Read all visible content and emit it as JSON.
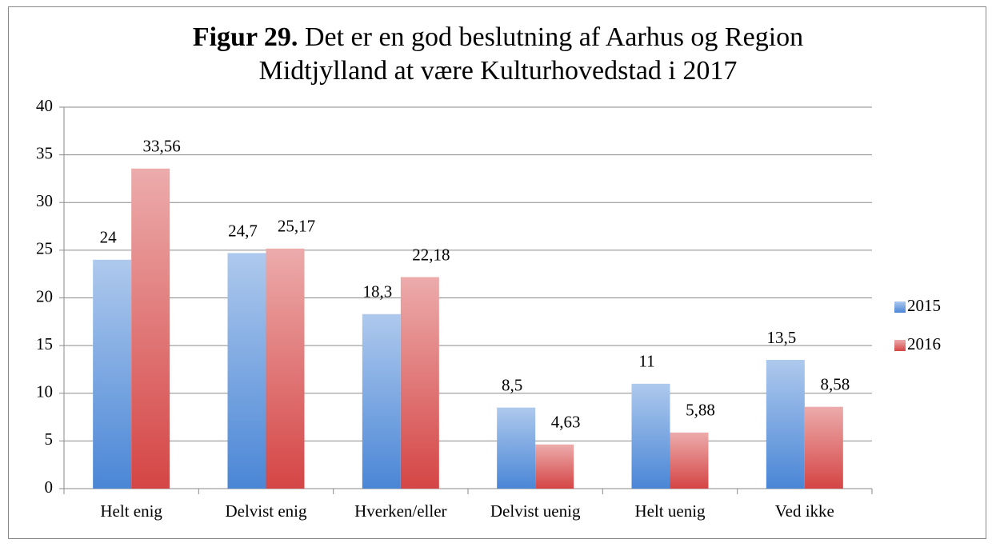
{
  "chart_data": {
    "type": "bar",
    "title_prefix": "Figur 29.",
    "title": "Det er en god beslutning af Aarhus og Region Midtjylland at være Kulturhovedstad i 2017",
    "categories": [
      "Helt enig",
      "Delvist enig",
      "Hverken/eller",
      "Delvist uenig",
      "Helt uenig",
      "Ved ikke"
    ],
    "series": [
      {
        "name": "2015",
        "color": "#4a86d6",
        "values": [
          24,
          24.7,
          18.3,
          8.5,
          11,
          13.5
        ],
        "value_labels": [
          "24",
          "24,7",
          "18,3",
          "8,5",
          "11",
          "13,5"
        ]
      },
      {
        "name": "2016",
        "color": "#d54545",
        "values": [
          33.56,
          25.17,
          22.18,
          4.63,
          5.88,
          8.58
        ],
        "value_labels": [
          "33,56",
          "25,17",
          "22,18",
          "4,63",
          "5,88",
          "8,58"
        ]
      }
    ],
    "ylim": [
      0,
      40
    ],
    "yticks": [
      0,
      5,
      10,
      15,
      20,
      25,
      30,
      35,
      40
    ],
    "grid": true,
    "legend": "right"
  }
}
